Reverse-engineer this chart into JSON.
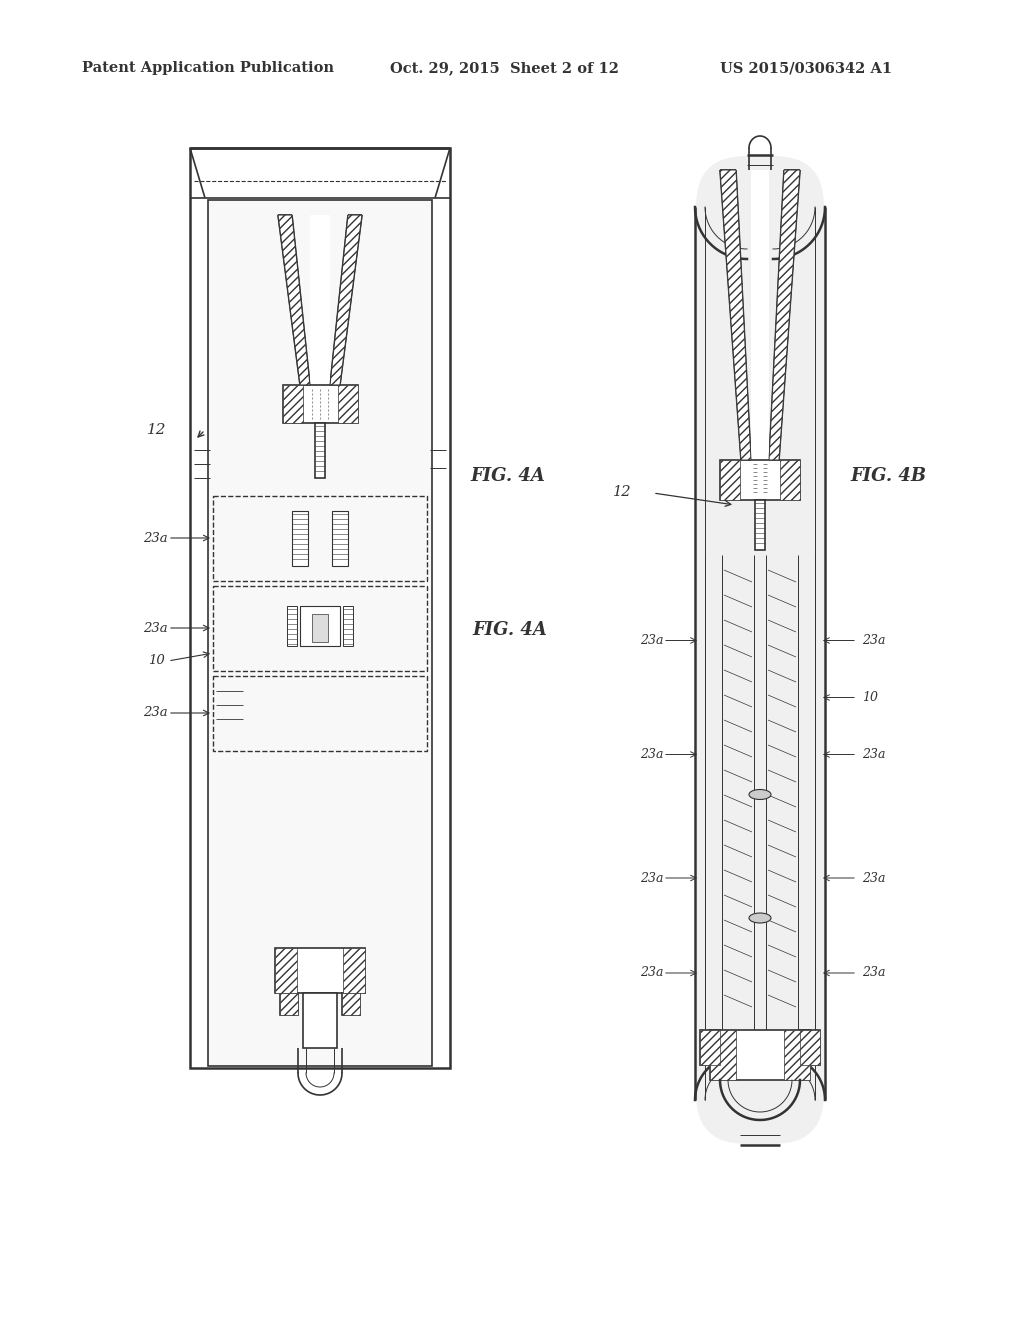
{
  "bg_color": "#ffffff",
  "header_left": "Patent Application Publication",
  "header_mid": "Oct. 29, 2015  Sheet 2 of 12",
  "header_right": "US 2015/0306342 A1",
  "fig4a_label": "FIG. 4A",
  "fig4b_label": "FIG. 4B",
  "label_12": "12",
  "label_23a": "23a",
  "label_10": "10",
  "line_color": "#333333"
}
